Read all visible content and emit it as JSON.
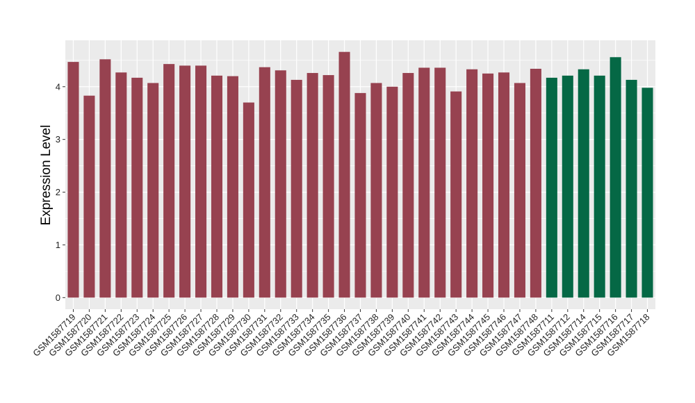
{
  "chart_data": {
    "type": "bar",
    "ylabel": "Expression Level",
    "xlabel": "",
    "ylim": [
      -0.22,
      4.88
    ],
    "yticks": [
      0,
      1,
      2,
      3,
      4
    ],
    "grid": true,
    "categories": [
      "GSM1587719",
      "GSM1587720",
      "GSM1587721",
      "GSM1587722",
      "GSM1587723",
      "GSM1587724",
      "GSM1587725",
      "GSM1587726",
      "GSM1587727",
      "GSM1587728",
      "GSM1587729",
      "GSM1587730",
      "GSM1587731",
      "GSM1587732",
      "GSM1587733",
      "GSM1587734",
      "GSM1587735",
      "GSM1587736",
      "GSM1587737",
      "GSM1587738",
      "GSM1587739",
      "GSM1587740",
      "GSM1587741",
      "GSM1587742",
      "GSM1587743",
      "GSM1587744",
      "GSM1587745",
      "GSM1587746",
      "GSM1587747",
      "GSM1587748",
      "GSM1587711",
      "GSM1587712",
      "GSM1587714",
      "GSM1587715",
      "GSM1587716",
      "GSM1587717",
      "GSM1587718"
    ],
    "values": [
      4.47,
      3.83,
      4.52,
      4.27,
      4.17,
      4.07,
      4.43,
      4.4,
      4.4,
      4.21,
      4.2,
      3.7,
      4.37,
      4.31,
      4.13,
      4.26,
      4.22,
      4.66,
      3.88,
      4.07,
      4.0,
      4.26,
      4.36,
      4.36,
      3.91,
      4.33,
      4.25,
      4.27,
      4.07,
      4.34,
      4.17,
      4.21,
      4.33,
      4.21,
      4.56,
      4.13,
      3.98
    ],
    "groups": [
      "g1",
      "g1",
      "g1",
      "g1",
      "g1",
      "g1",
      "g1",
      "g1",
      "g1",
      "g1",
      "g1",
      "g1",
      "g1",
      "g1",
      "g1",
      "g1",
      "g1",
      "g1",
      "g1",
      "g1",
      "g1",
      "g1",
      "g1",
      "g1",
      "g1",
      "g1",
      "g1",
      "g1",
      "g1",
      "g1",
      "g2",
      "g2",
      "g2",
      "g2",
      "g2",
      "g2",
      "g2"
    ],
    "colors": {
      "g1": "#974250",
      "g2": "#056845",
      "panel": "#ebebeb",
      "grid": "#ffffff"
    }
  }
}
